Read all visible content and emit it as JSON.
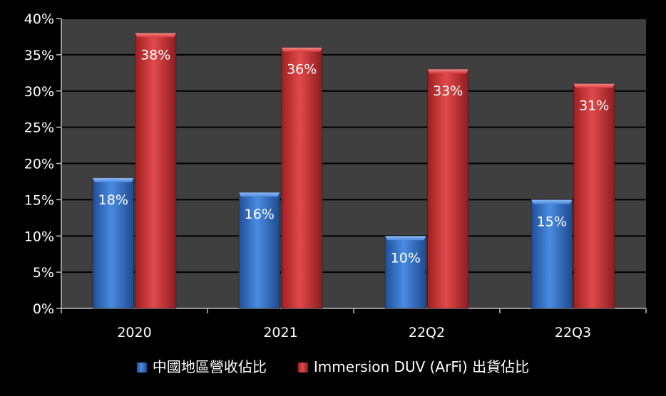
{
  "chart_data": {
    "type": "bar",
    "categories": [
      "2020",
      "2021",
      "22Q2",
      "22Q3"
    ],
    "series": [
      {
        "name": "中國地區營收佔比",
        "values": [
          18,
          16,
          10,
          15
        ],
        "labels": [
          "18%",
          "16%",
          "10%",
          "15%"
        ],
        "color": "#3a7bd5"
      },
      {
        "name": "Immersion DUV (ArFi) 出貨佔比",
        "values": [
          38,
          36,
          33,
          31
        ],
        "labels": [
          "38%",
          "36%",
          "33%",
          "31%"
        ],
        "color": "#d9383a"
      }
    ],
    "y_ticks": [
      "0%",
      "5%",
      "10%",
      "15%",
      "20%",
      "25%",
      "30%",
      "35%",
      "40%"
    ],
    "ylim": [
      0,
      40
    ],
    "grid": true,
    "legend": "bottom",
    "title": "",
    "xlabel": "",
    "ylabel": "",
    "colors": {
      "background": "#000000",
      "plot_area": "#3f3f3f",
      "gridline": "#000000",
      "text": "#ffffff"
    }
  }
}
